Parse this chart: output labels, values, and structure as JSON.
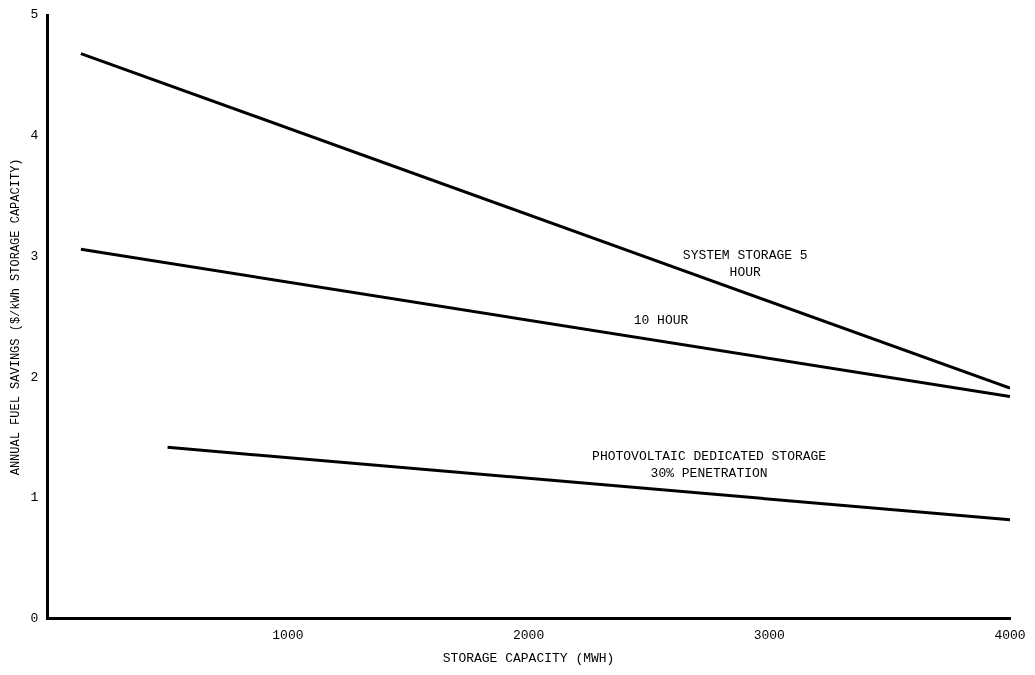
{
  "chart_data": {
    "type": "line",
    "xlabel": "STORAGE CAPACITY (MWH)",
    "ylabel": "ANNUAL FUEL SAVINGS ($/kWh STORAGE CAPACITY)",
    "xlim": [
      0,
      4000
    ],
    "xticks": [
      1000,
      2000,
      3000,
      4000
    ],
    "ylim": [
      0,
      5
    ],
    "yticks": [
      0,
      1,
      2,
      3,
      4,
      5
    ],
    "grid": false,
    "legend": false,
    "marker": "none",
    "line_style": "solid",
    "series": [
      {
        "name": "SYSTEM STORAGE 5 HOUR",
        "color": "#000000",
        "x": [
          140,
          4000
        ],
        "values": [
          4.68,
          1.91
        ]
      },
      {
        "name": "10 HOUR",
        "color": "#000000",
        "x": [
          140,
          4000
        ],
        "values": [
          3.06,
          1.84
        ]
      },
      {
        "name": "PHOTOVOLTAIC DEDICATED STORAGE 30% PENETRATION",
        "color": "#000000",
        "x": [
          500,
          4000
        ],
        "values": [
          1.42,
          0.82
        ]
      }
    ]
  }
}
